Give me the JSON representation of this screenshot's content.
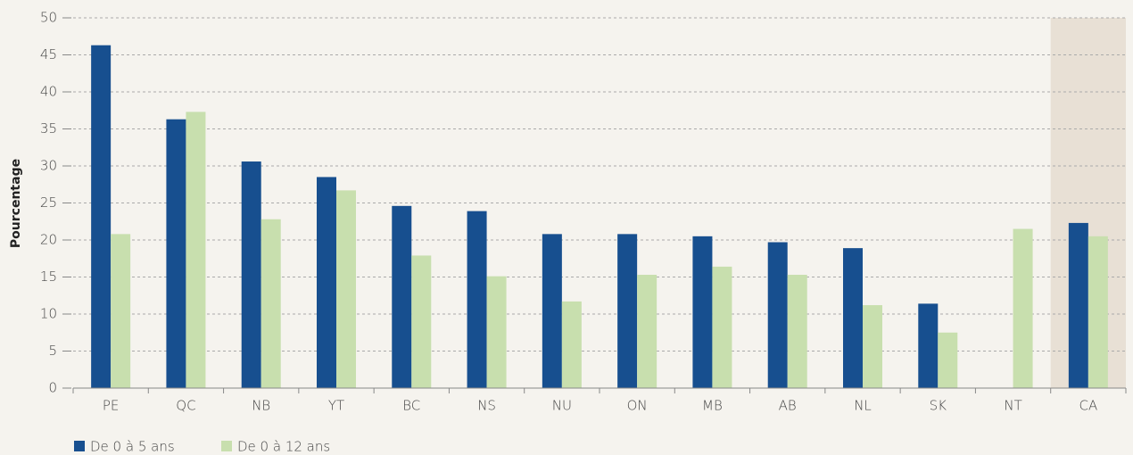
{
  "chart_data": {
    "type": "bar",
    "y_label": "Pourcentage",
    "categories": [
      "PE",
      "QC",
      "NB",
      "YT",
      "BC",
      "NS",
      "NU",
      "ON",
      "MB",
      "AB",
      "NL",
      "SK",
      "NT",
      "CA"
    ],
    "series": [
      {
        "name": "De 0 à 5 ans",
        "color": "#174f8f",
        "values": [
          46.3,
          36.3,
          30.6,
          28.5,
          24.6,
          23.9,
          20.8,
          20.8,
          20.5,
          19.7,
          18.9,
          11.4,
          null,
          22.3
        ]
      },
      {
        "name": "De 0 à 12 ans",
        "color": "#c8dfae",
        "values": [
          20.8,
          37.3,
          22.8,
          26.7,
          17.9,
          15.1,
          11.7,
          15.3,
          16.4,
          15.3,
          11.2,
          7.5,
          21.5,
          20.5
        ]
      }
    ],
    "ylim": [
      0,
      50
    ],
    "yticks": [
      0,
      5,
      10,
      15,
      20,
      25,
      30,
      35,
      40,
      45,
      50
    ],
    "grid": true,
    "highlight": "CA",
    "highlight_color": "#e8e0d5",
    "legend": "bottom-left"
  }
}
